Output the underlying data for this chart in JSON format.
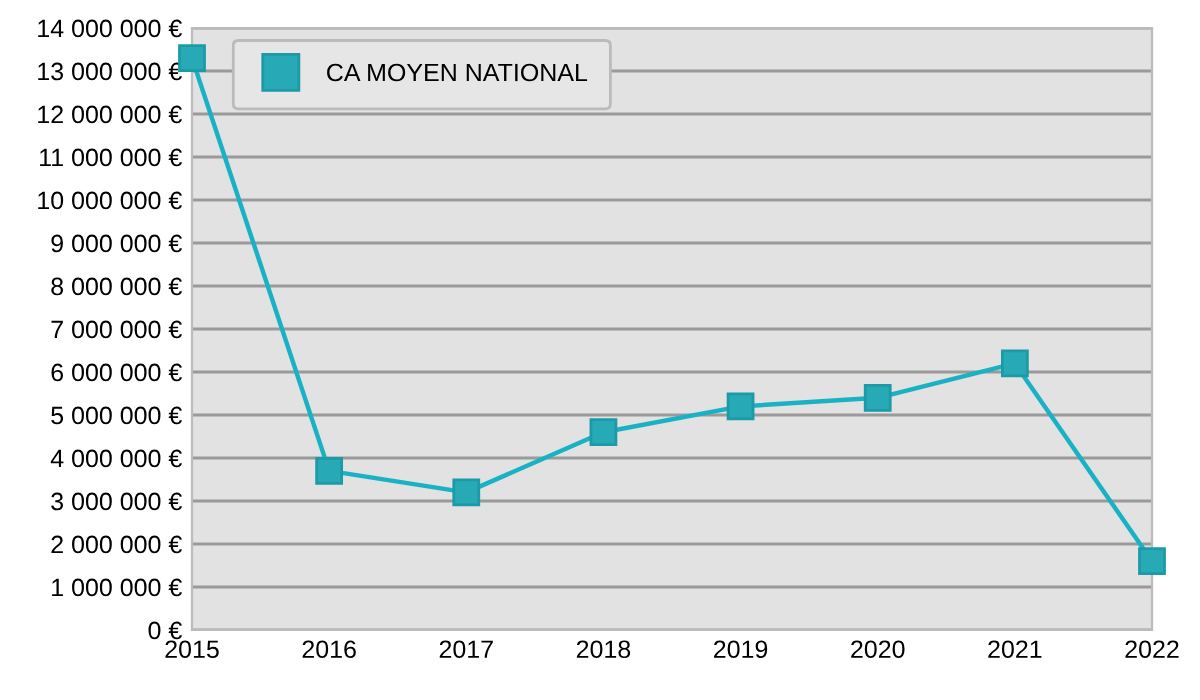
{
  "chart_data": {
    "type": "line",
    "categories": [
      "2015",
      "2016",
      "2017",
      "2018",
      "2019",
      "2020",
      "2021",
      "2022"
    ],
    "series": [
      {
        "name": "CA MOYEN NATIONAL",
        "color": "#19b2c4",
        "values": [
          13300000,
          3700000,
          3200000,
          4600000,
          5200000,
          5400000,
          6200000,
          1600000
        ]
      }
    ],
    "ylim": [
      0,
      14000000
    ],
    "yticks": [
      {
        "value": 0,
        "label": "0 €"
      },
      {
        "value": 1000000,
        "label": "1 000 000 €"
      },
      {
        "value": 2000000,
        "label": "2 000 000 €"
      },
      {
        "value": 3000000,
        "label": "3 000 000 €"
      },
      {
        "value": 4000000,
        "label": "4 000 000 €"
      },
      {
        "value": 5000000,
        "label": "5 000 000 €"
      },
      {
        "value": 6000000,
        "label": "6 000 000 €"
      },
      {
        "value": 7000000,
        "label": "7 000 000 €"
      },
      {
        "value": 8000000,
        "label": "8 000 000 €"
      },
      {
        "value": 9000000,
        "label": "9 000 000 €"
      },
      {
        "value": 10000000,
        "label": "10 000 000 €"
      },
      {
        "value": 11000000,
        "label": "11 000 000 €"
      },
      {
        "value": 12000000,
        "label": "12 000 000 €"
      },
      {
        "value": 13000000,
        "label": "13 000 000 €"
      },
      {
        "value": 14000000,
        "label": "14 000 000 €"
      }
    ],
    "grid": "y",
    "legend": "top left",
    "marker": "square",
    "line_style": "solid"
  }
}
